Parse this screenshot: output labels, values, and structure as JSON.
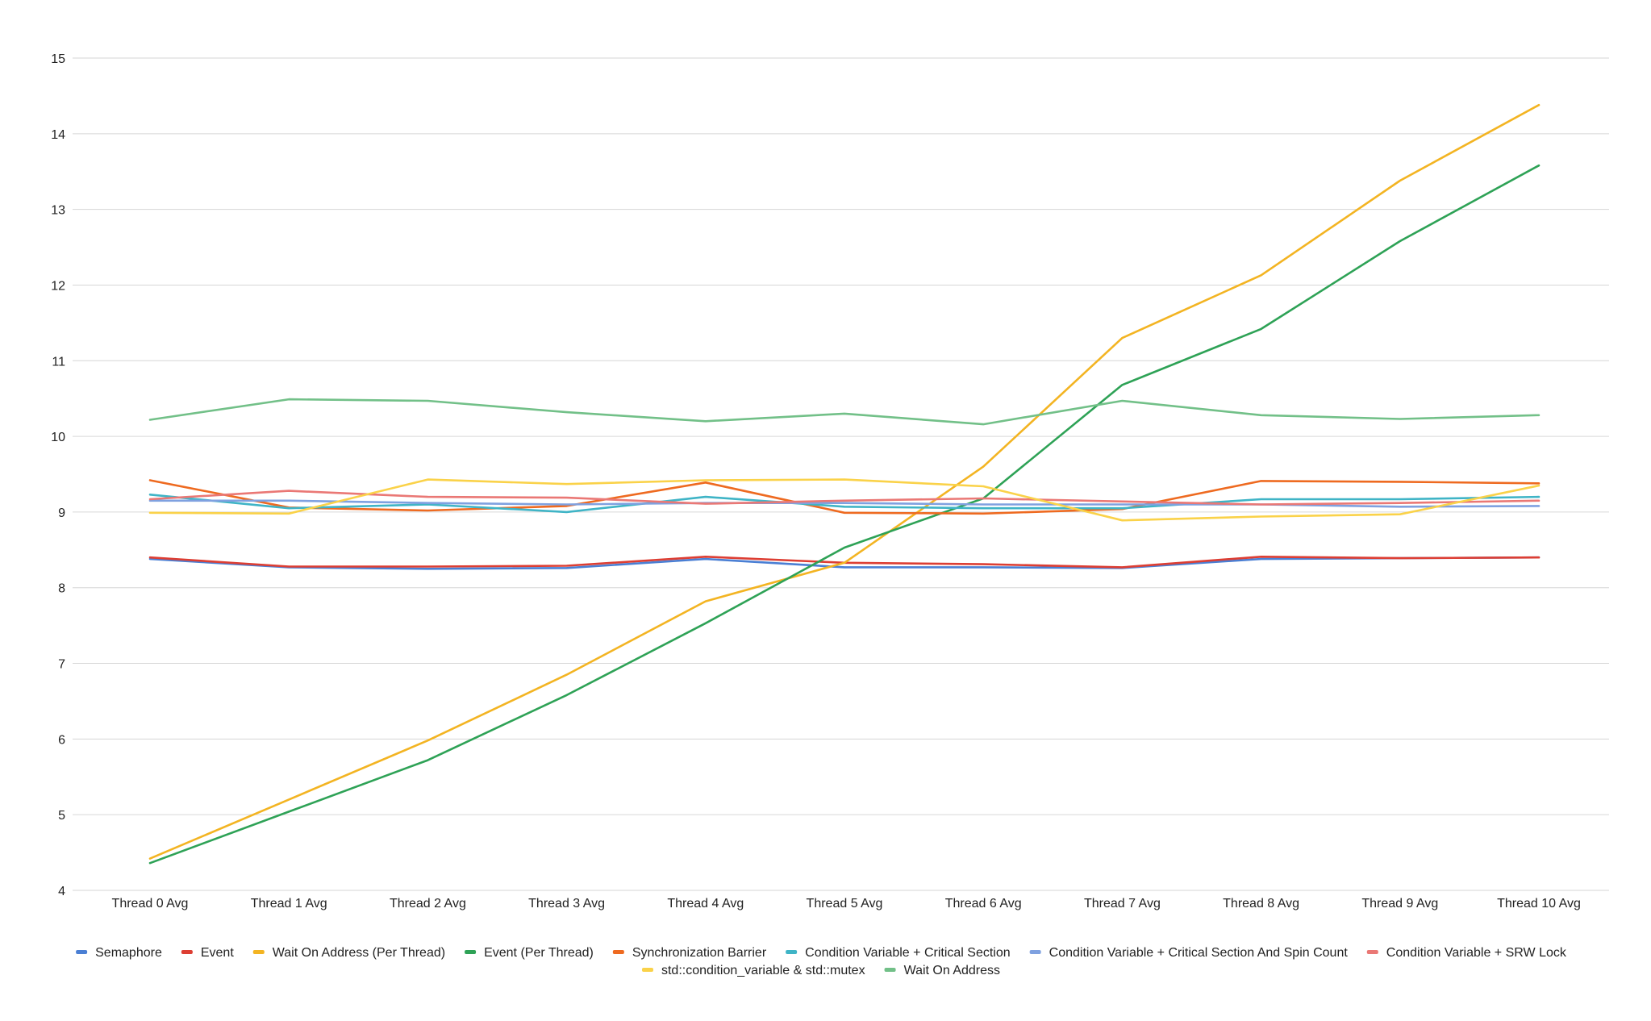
{
  "chart_data": {
    "type": "line",
    "title": "",
    "xlabel": "",
    "ylabel": "",
    "ylim": [
      4,
      15
    ],
    "yticks": [
      4,
      5,
      6,
      7,
      8,
      9,
      10,
      11,
      12,
      13,
      14,
      15
    ],
    "grid": true,
    "legend_position": "bottom",
    "categories": [
      "Thread 0 Avg",
      "Thread 1 Avg",
      "Thread 2 Avg",
      "Thread 3 Avg",
      "Thread 4 Avg",
      "Thread 5 Avg",
      "Thread 6 Avg",
      "Thread 7 Avg",
      "Thread 8 Avg",
      "Thread 9 Avg",
      "Thread 10 Avg"
    ],
    "series": [
      {
        "name": "Semaphore",
        "color": "#4a7fd4",
        "values": [
          8.38,
          8.27,
          8.25,
          8.26,
          8.38,
          8.27,
          8.27,
          8.26,
          8.38,
          8.39,
          8.4
        ]
      },
      {
        "name": "Event",
        "color": "#dd3e33",
        "values": [
          8.4,
          8.28,
          8.28,
          8.29,
          8.41,
          8.33,
          8.31,
          8.27,
          8.41,
          8.39,
          8.4
        ]
      },
      {
        "name": "Wait On Address (Per Thread)",
        "color": "#f3b422",
        "values": [
          4.42,
          5.2,
          5.98,
          6.85,
          7.82,
          8.33,
          9.6,
          11.3,
          12.13,
          13.38,
          14.38
        ]
      },
      {
        "name": "Event (Per Thread)",
        "color": "#2ea256",
        "values": [
          4.36,
          5.04,
          5.72,
          6.58,
          7.53,
          8.53,
          9.18,
          10.68,
          11.42,
          12.58,
          13.58
        ]
      },
      {
        "name": "Synchronization Barrier",
        "color": "#ee6a20",
        "values": [
          9.42,
          9.06,
          9.02,
          9.08,
          9.39,
          8.99,
          8.98,
          9.04,
          9.41,
          9.4,
          9.38
        ]
      },
      {
        "name": "Condition Variable + Critical Section",
        "color": "#3fb4c6",
        "values": [
          9.23,
          9.05,
          9.1,
          9.0,
          9.2,
          9.07,
          9.05,
          9.05,
          9.17,
          9.17,
          9.2
        ]
      },
      {
        "name": "Condition Variable + Critical Section And Spin Count",
        "color": "#7fa1e0",
        "values": [
          9.15,
          9.15,
          9.12,
          9.1,
          9.12,
          9.12,
          9.1,
          9.1,
          9.1,
          9.07,
          9.08
        ]
      },
      {
        "name": "Condition Variable + SRW Lock",
        "color": "#ea7875",
        "values": [
          9.17,
          9.28,
          9.2,
          9.19,
          9.11,
          9.15,
          9.18,
          9.14,
          9.1,
          9.12,
          9.15
        ]
      },
      {
        "name": "std::condition_variable & std::mutex",
        "color": "#fad249",
        "values": [
          8.99,
          8.98,
          9.43,
          9.37,
          9.42,
          9.43,
          9.34,
          8.89,
          8.94,
          8.97,
          9.35
        ]
      },
      {
        "name": "Wait On Address",
        "color": "#72c088",
        "values": [
          10.22,
          10.49,
          10.47,
          10.32,
          10.2,
          10.3,
          10.16,
          10.47,
          10.28,
          10.23,
          10.28
        ]
      }
    ]
  }
}
